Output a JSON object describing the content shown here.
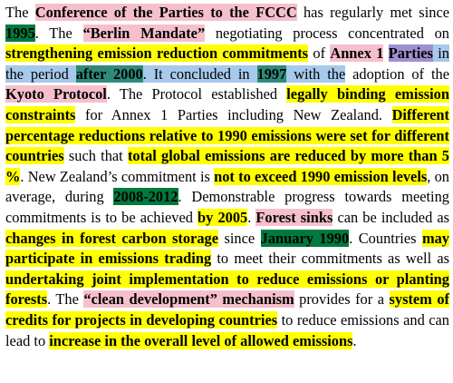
{
  "document": {
    "segments": [
      {
        "text": "The ",
        "bold": false,
        "highlight": "none"
      },
      {
        "text": "Conference of the Parties to the FCCC",
        "bold": true,
        "highlight": "pink"
      },
      {
        "text": " has regularly met since ",
        "bold": false,
        "highlight": "none"
      },
      {
        "text": "1995",
        "bold": true,
        "highlight": "green"
      },
      {
        "text": ". The ",
        "bold": false,
        "highlight": "none"
      },
      {
        "text": "“Berlin Mandate”",
        "bold": true,
        "highlight": "pink"
      },
      {
        "text": " negotiating process concentrated on ",
        "bold": false,
        "highlight": "none"
      },
      {
        "text": "strengthening emission reduction commitments",
        "bold": true,
        "highlight": "yellow"
      },
      {
        "text": " of ",
        "bold": false,
        "highlight": "none"
      },
      {
        "text": "Annex 1",
        "bold": true,
        "highlight": "pink"
      },
      {
        "text": " ",
        "bold": false,
        "highlight": "none"
      },
      {
        "text": "Parties",
        "bold": true,
        "highlight": "purple"
      },
      {
        "text": " in the period ",
        "bold": false,
        "highlight": "blue"
      },
      {
        "text": "after 2000",
        "bold": true,
        "highlight": "teal"
      },
      {
        "text": ". It concluded in ",
        "bold": false,
        "highlight": "blue"
      },
      {
        "text": "1997",
        "bold": true,
        "highlight": "teal"
      },
      {
        "text": " with the",
        "bold": false,
        "highlight": "blue"
      },
      {
        "text": " adoption of the ",
        "bold": false,
        "highlight": "none"
      },
      {
        "text": "Kyoto Protocol",
        "bold": true,
        "highlight": "pink"
      },
      {
        "text": ". The Protocol established ",
        "bold": false,
        "highlight": "none"
      },
      {
        "text": "legally binding emission constraints",
        "bold": true,
        "highlight": "yellow"
      },
      {
        "text": " for Annex 1 Parties including New Zealand. ",
        "bold": false,
        "highlight": "none"
      },
      {
        "text": "Different percentage reductions relative to 1990 emissions were set for different countries",
        "bold": true,
        "highlight": "yellow"
      },
      {
        "text": " such that ",
        "bold": false,
        "highlight": "none"
      },
      {
        "text": "total global emissions are reduced by more than 5 %",
        "bold": true,
        "highlight": "yellow"
      },
      {
        "text": ". New Zealand’s commitment is ",
        "bold": false,
        "highlight": "none"
      },
      {
        "text": "not to exceed 1990 emission levels",
        "bold": true,
        "highlight": "yellow"
      },
      {
        "text": ", on average, during ",
        "bold": false,
        "highlight": "none"
      },
      {
        "text": "2008-2012",
        "bold": true,
        "highlight": "green"
      },
      {
        "text": ". Demonstrable progress towards meeting commitments is to be achieved ",
        "bold": false,
        "highlight": "none"
      },
      {
        "text": "by 2005",
        "bold": true,
        "highlight": "yellow"
      },
      {
        "text": ". ",
        "bold": false,
        "highlight": "none"
      },
      {
        "text": "Forest sinks",
        "bold": true,
        "highlight": "pink"
      },
      {
        "text": " can be included as ",
        "bold": false,
        "highlight": "none"
      },
      {
        "text": "changes in forest carbon storage",
        "bold": true,
        "highlight": "yellow"
      },
      {
        "text": " since ",
        "bold": false,
        "highlight": "none"
      },
      {
        "text": "January 1990",
        "bold": true,
        "highlight": "green"
      },
      {
        "text": ". Countries ",
        "bold": false,
        "highlight": "none"
      },
      {
        "text": "may participate in emissions trading",
        "bold": true,
        "highlight": "yellow"
      },
      {
        "text": " to meet their commitments as well as ",
        "bold": false,
        "highlight": "none"
      },
      {
        "text": "undertaking joint implementation to reduce emissions or planting forests",
        "bold": true,
        "highlight": "yellow"
      },
      {
        "text": ". The ",
        "bold": false,
        "highlight": "none"
      },
      {
        "text": "“clean development” mechanism",
        "bold": true,
        "highlight": "pink"
      },
      {
        "text": " provides for a ",
        "bold": false,
        "highlight": "none"
      },
      {
        "text": "system of credits for projects in developing countries",
        "bold": true,
        "highlight": "yellow"
      },
      {
        "text": " to reduce emissions and can lead to ",
        "bold": false,
        "highlight": "none"
      },
      {
        "text": "increase in the overall level of allowed emissions",
        "bold": true,
        "highlight": "yellow"
      },
      {
        "text": ".",
        "bold": false,
        "highlight": "none"
      }
    ]
  }
}
